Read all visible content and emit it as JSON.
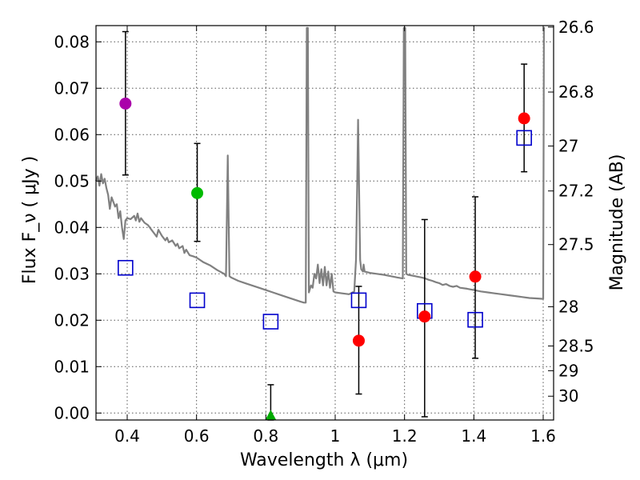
{
  "chart_data": {
    "type": "scatter",
    "title": "",
    "xlabel": "Wavelength  λ (μm)",
    "ylabel": "Flux  F_ν  ( μJy )",
    "ylabel_right": "Magnitude (AB)",
    "xlim": [
      0.31,
      1.63
    ],
    "ylim": [
      -0.0015,
      0.0835
    ],
    "grid": true,
    "x_ticks": [
      0.4,
      0.6,
      0.8,
      1.0,
      1.2,
      1.4,
      1.6
    ],
    "x_tick_labels": [
      "0.4",
      "0.6",
      "0.8",
      "1",
      "1.2",
      "1.4",
      "1.6"
    ],
    "y_ticks": [
      0.0,
      0.01,
      0.02,
      0.03,
      0.04,
      0.05,
      0.06,
      0.07,
      0.08
    ],
    "y_tick_labels": [
      "0.00",
      "0.01",
      "0.02",
      "0.03",
      "0.04",
      "0.05",
      "0.06",
      "0.07",
      "0.08"
    ],
    "right_ticks": [
      {
        "mag": 26.6,
        "label": "26.6"
      },
      {
        "mag": 26.8,
        "label": "26.8"
      },
      {
        "mag": 27.0,
        "label": "27"
      },
      {
        "mag": 27.2,
        "label": "27.2"
      },
      {
        "mag": 27.5,
        "label": "27.5"
      },
      {
        "mag": 28.0,
        "label": "28"
      },
      {
        "mag": 28.5,
        "label": "28.5"
      },
      {
        "mag": 29.0,
        "label": "29"
      },
      {
        "mag": 30.0,
        "label": "30"
      }
    ],
    "observed": [
      {
        "x": 0.395,
        "y": 0.0667,
        "err_low": 0.0513,
        "err_high": 0.0822,
        "color": "#aa00aa",
        "marker": "circle"
      },
      {
        "x": 0.602,
        "y": 0.0474,
        "err_low": 0.037,
        "err_high": 0.0581,
        "color": "#00bb00",
        "marker": "circle"
      },
      {
        "x": 0.814,
        "y": -0.0005,
        "err_low": -0.0015,
        "err_high": 0.0061,
        "color": "#00aa00",
        "marker": "triangle"
      },
      {
        "x": 1.068,
        "y": 0.0156,
        "err_low": 0.0041,
        "err_high": 0.0273,
        "color": "#ff0000",
        "marker": "circle"
      },
      {
        "x": 1.258,
        "y": 0.0208,
        "err_low": -0.0008,
        "err_high": 0.0417,
        "color": "#ff0000",
        "marker": "circle"
      },
      {
        "x": 1.404,
        "y": 0.0294,
        "err_low": 0.0118,
        "err_high": 0.0466,
        "color": "#ff0000",
        "marker": "circle"
      },
      {
        "x": 1.545,
        "y": 0.0635,
        "err_low": 0.052,
        "err_high": 0.0752,
        "color": "#ff0000",
        "marker": "circle"
      }
    ],
    "model_photometry": {
      "color": "#0000cc",
      "points": [
        {
          "x": 0.395,
          "y": 0.0313
        },
        {
          "x": 0.602,
          "y": 0.0243
        },
        {
          "x": 0.814,
          "y": 0.0197
        },
        {
          "x": 1.068,
          "y": 0.0243
        },
        {
          "x": 1.258,
          "y": 0.022
        },
        {
          "x": 1.404,
          "y": 0.0201
        },
        {
          "x": 1.545,
          "y": 0.0593
        }
      ]
    },
    "sed_model": {
      "color": "#808080",
      "points": [
        [
          0.31,
          0.05
        ],
        [
          0.315,
          0.051
        ],
        [
          0.32,
          0.049
        ],
        [
          0.325,
          0.0515
        ],
        [
          0.33,
          0.0495
        ],
        [
          0.335,
          0.0505
        ],
        [
          0.34,
          0.0485
        ],
        [
          0.345,
          0.047
        ],
        [
          0.35,
          0.044
        ],
        [
          0.355,
          0.0465
        ],
        [
          0.36,
          0.0455
        ],
        [
          0.365,
          0.0445
        ],
        [
          0.37,
          0.045
        ],
        [
          0.375,
          0.042
        ],
        [
          0.38,
          0.0435
        ],
        [
          0.385,
          0.04
        ],
        [
          0.39,
          0.0375
        ],
        [
          0.395,
          0.0415
        ],
        [
          0.4,
          0.042
        ],
        [
          0.41,
          0.0418
        ],
        [
          0.42,
          0.0425
        ],
        [
          0.425,
          0.0415
        ],
        [
          0.43,
          0.043
        ],
        [
          0.435,
          0.0412
        ],
        [
          0.44,
          0.042
        ],
        [
          0.45,
          0.041
        ],
        [
          0.46,
          0.0405
        ],
        [
          0.47,
          0.0395
        ],
        [
          0.48,
          0.0385
        ],
        [
          0.485,
          0.038
        ],
        [
          0.49,
          0.0395
        ],
        [
          0.5,
          0.0382
        ],
        [
          0.51,
          0.0372
        ],
        [
          0.515,
          0.0378
        ],
        [
          0.52,
          0.0368
        ],
        [
          0.53,
          0.0372
        ],
        [
          0.54,
          0.036
        ],
        [
          0.545,
          0.0365
        ],
        [
          0.55,
          0.0355
        ],
        [
          0.56,
          0.036
        ],
        [
          0.565,
          0.0345
        ],
        [
          0.57,
          0.0352
        ],
        [
          0.58,
          0.034
        ],
        [
          0.59,
          0.0338
        ],
        [
          0.6,
          0.0335
        ],
        [
          0.62,
          0.0325
        ],
        [
          0.64,
          0.0318
        ],
        [
          0.66,
          0.0308
        ],
        [
          0.68,
          0.03
        ],
        [
          0.685,
          0.0295
        ],
        [
          0.69,
          0.0555
        ],
        [
          0.695,
          0.0295
        ],
        [
          0.7,
          0.0292
        ],
        [
          0.72,
          0.0285
        ],
        [
          0.74,
          0.028
        ],
        [
          0.76,
          0.0275
        ],
        [
          0.78,
          0.027
        ],
        [
          0.8,
          0.0265
        ],
        [
          0.82,
          0.026
        ],
        [
          0.84,
          0.0255
        ],
        [
          0.86,
          0.025
        ],
        [
          0.88,
          0.0245
        ],
        [
          0.9,
          0.024
        ],
        [
          0.91,
          0.0238
        ],
        [
          0.915,
          0.0238
        ],
        [
          0.918,
          0.083
        ],
        [
          0.921,
          0.083
        ],
        [
          0.924,
          0.026
        ],
        [
          0.93,
          0.0275
        ],
        [
          0.935,
          0.027
        ],
        [
          0.94,
          0.03
        ],
        [
          0.945,
          0.029
        ],
        [
          0.95,
          0.032
        ],
        [
          0.955,
          0.028
        ],
        [
          0.96,
          0.031
        ],
        [
          0.965,
          0.0275
        ],
        [
          0.97,
          0.0315
        ],
        [
          0.975,
          0.0275
        ],
        [
          0.98,
          0.0305
        ],
        [
          0.985,
          0.027
        ],
        [
          0.99,
          0.03
        ],
        [
          0.995,
          0.0262
        ],
        [
          1.0,
          0.026
        ],
        [
          1.02,
          0.0258
        ],
        [
          1.04,
          0.0256
        ],
        [
          1.055,
          0.0262
        ],
        [
          1.06,
          0.033
        ],
        [
          1.063,
          0.047
        ],
        [
          1.066,
          0.0632
        ],
        [
          1.069,
          0.048
        ],
        [
          1.072,
          0.033
        ],
        [
          1.075,
          0.031
        ],
        [
          1.08,
          0.0305
        ],
        [
          1.082,
          0.032
        ],
        [
          1.085,
          0.0305
        ],
        [
          1.1,
          0.0302
        ],
        [
          1.12,
          0.03
        ],
        [
          1.14,
          0.0298
        ],
        [
          1.16,
          0.0295
        ],
        [
          1.18,
          0.0292
        ],
        [
          1.195,
          0.029
        ],
        [
          1.198,
          0.083
        ],
        [
          1.202,
          0.083
        ],
        [
          1.205,
          0.03
        ],
        [
          1.21,
          0.0298
        ],
        [
          1.23,
          0.0295
        ],
        [
          1.25,
          0.0292
        ],
        [
          1.26,
          0.029
        ],
        [
          1.27,
          0.0287
        ],
        [
          1.28,
          0.0285
        ],
        [
          1.29,
          0.0282
        ],
        [
          1.3,
          0.028
        ],
        [
          1.31,
          0.0276
        ],
        [
          1.32,
          0.0278
        ],
        [
          1.33,
          0.0274
        ],
        [
          1.34,
          0.0272
        ],
        [
          1.35,
          0.0274
        ],
        [
          1.36,
          0.027
        ],
        [
          1.38,
          0.0268
        ],
        [
          1.4,
          0.0265
        ],
        [
          1.42,
          0.0262
        ],
        [
          1.44,
          0.026
        ],
        [
          1.46,
          0.0258
        ],
        [
          1.48,
          0.0256
        ],
        [
          1.5,
          0.0254
        ],
        [
          1.52,
          0.0252
        ],
        [
          1.54,
          0.025
        ],
        [
          1.56,
          0.0248
        ],
        [
          1.58,
          0.0247
        ],
        [
          1.6,
          0.0246
        ],
        [
          1.602,
          0.083
        ],
        [
          1.605,
          0.083
        ]
      ]
    }
  }
}
